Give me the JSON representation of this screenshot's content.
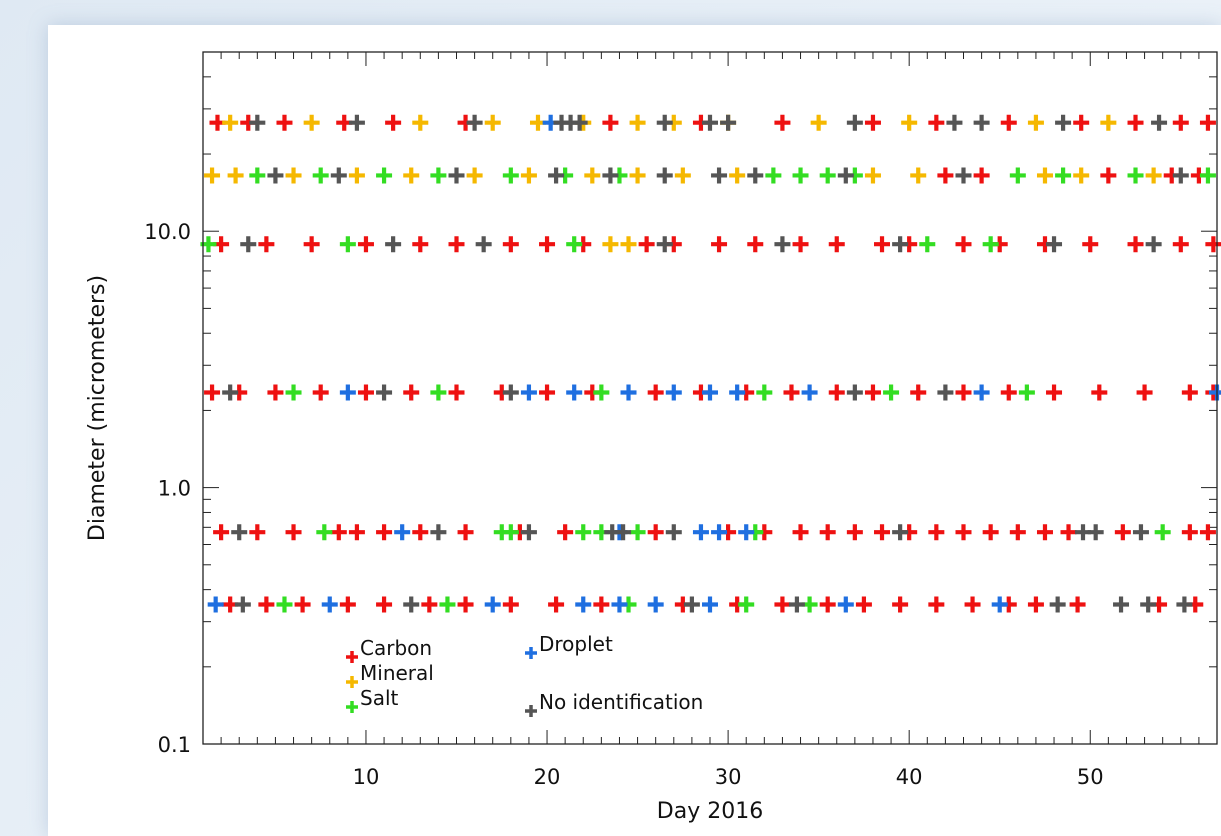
{
  "chart_data": {
    "type": "scatter",
    "title": "",
    "xlabel": "Day 2016",
    "ylabel": "Diameter (micrometers)",
    "xlim": [
      1,
      57
    ],
    "ylim": [
      0.1,
      50
    ],
    "y_scale": "log",
    "x_ticks": [
      10,
      20,
      30,
      40,
      50
    ],
    "x_tick_labels": [
      "10",
      "20",
      "30",
      "40",
      "50"
    ],
    "y_ticks": [
      0.1,
      1.0,
      10.0
    ],
    "y_tick_labels": [
      "0.1",
      "1.0",
      "10.0"
    ],
    "marker": "plus",
    "grid": false,
    "size_bins": [
      0.35,
      0.67,
      2.35,
      8.9,
      16.5,
      26.5
    ],
    "series": [
      {
        "name": "Carbon",
        "color": "#ee1111",
        "points": [
          [
            1.8,
            26.5
          ],
          [
            3.5,
            26.5
          ],
          [
            5.5,
            26.5
          ],
          [
            8.8,
            26.5
          ],
          [
            11.5,
            26.5
          ],
          [
            15.5,
            26.5
          ],
          [
            23.5,
            26.5
          ],
          [
            28.5,
            26.5
          ],
          [
            33.0,
            26.5
          ],
          [
            38.0,
            26.5
          ],
          [
            41.5,
            26.5
          ],
          [
            45.5,
            26.5
          ],
          [
            49.5,
            26.5
          ],
          [
            52.5,
            26.5
          ],
          [
            55.0,
            26.5
          ],
          [
            56.5,
            26.5
          ],
          [
            42.0,
            16.5
          ],
          [
            44.0,
            16.5
          ],
          [
            51.0,
            16.5
          ],
          [
            54.5,
            16.5
          ],
          [
            56.0,
            16.5
          ],
          [
            2.0,
            8.9
          ],
          [
            4.5,
            8.9
          ],
          [
            7.0,
            8.9
          ],
          [
            10.0,
            8.9
          ],
          [
            13.0,
            8.9
          ],
          [
            15.0,
            8.9
          ],
          [
            18.0,
            8.9
          ],
          [
            20.0,
            8.9
          ],
          [
            22.0,
            8.9
          ],
          [
            25.5,
            8.9
          ],
          [
            27.0,
            8.9
          ],
          [
            29.5,
            8.9
          ],
          [
            31.5,
            8.9
          ],
          [
            34.0,
            8.9
          ],
          [
            36.0,
            8.9
          ],
          [
            38.5,
            8.9
          ],
          [
            40.0,
            8.9
          ],
          [
            43.0,
            8.9
          ],
          [
            45.0,
            8.9
          ],
          [
            47.5,
            8.9
          ],
          [
            50.0,
            8.9
          ],
          [
            52.5,
            8.9
          ],
          [
            55.0,
            8.9
          ],
          [
            56.8,
            8.9
          ],
          [
            1.5,
            2.35
          ],
          [
            3.0,
            2.35
          ],
          [
            5.0,
            2.35
          ],
          [
            7.5,
            2.35
          ],
          [
            10.0,
            2.35
          ],
          [
            12.5,
            2.35
          ],
          [
            15.0,
            2.35
          ],
          [
            17.5,
            2.35
          ],
          [
            20.0,
            2.35
          ],
          [
            22.5,
            2.35
          ],
          [
            26.0,
            2.35
          ],
          [
            28.5,
            2.35
          ],
          [
            31.0,
            2.35
          ],
          [
            33.5,
            2.35
          ],
          [
            36.0,
            2.35
          ],
          [
            38.0,
            2.35
          ],
          [
            40.5,
            2.35
          ],
          [
            43.0,
            2.35
          ],
          [
            45.5,
            2.35
          ],
          [
            48.0,
            2.35
          ],
          [
            50.5,
            2.35
          ],
          [
            53.0,
            2.35
          ],
          [
            55.5,
            2.35
          ],
          [
            56.8,
            2.35
          ],
          [
            2.0,
            0.67
          ],
          [
            4.0,
            0.67
          ],
          [
            6.0,
            0.67
          ],
          [
            8.5,
            0.67
          ],
          [
            9.5,
            0.67
          ],
          [
            11.0,
            0.67
          ],
          [
            13.0,
            0.67
          ],
          [
            15.5,
            0.67
          ],
          [
            18.5,
            0.67
          ],
          [
            21.0,
            0.67
          ],
          [
            26.0,
            0.67
          ],
          [
            30.0,
            0.67
          ],
          [
            32.0,
            0.67
          ],
          [
            34.0,
            0.67
          ],
          [
            35.5,
            0.67
          ],
          [
            37.0,
            0.67
          ],
          [
            38.5,
            0.67
          ],
          [
            40.0,
            0.67
          ],
          [
            41.5,
            0.67
          ],
          [
            43.0,
            0.67
          ],
          [
            44.5,
            0.67
          ],
          [
            46.0,
            0.67
          ],
          [
            47.5,
            0.67
          ],
          [
            48.8,
            0.67
          ],
          [
            51.8,
            0.67
          ],
          [
            55.5,
            0.67
          ],
          [
            56.5,
            0.67
          ],
          [
            2.5,
            0.35
          ],
          [
            4.5,
            0.35
          ],
          [
            6.5,
            0.35
          ],
          [
            9.0,
            0.35
          ],
          [
            11.0,
            0.35
          ],
          [
            13.5,
            0.35
          ],
          [
            15.5,
            0.35
          ],
          [
            18.0,
            0.35
          ],
          [
            20.5,
            0.35
          ],
          [
            23.0,
            0.35
          ],
          [
            27.5,
            0.35
          ],
          [
            30.5,
            0.35
          ],
          [
            33.0,
            0.35
          ],
          [
            35.5,
            0.35
          ],
          [
            37.5,
            0.35
          ],
          [
            39.5,
            0.35
          ],
          [
            41.5,
            0.35
          ],
          [
            43.5,
            0.35
          ],
          [
            45.5,
            0.35
          ],
          [
            47.0,
            0.35
          ],
          [
            49.3,
            0.35
          ],
          [
            53.8,
            0.35
          ],
          [
            55.8,
            0.35
          ]
        ]
      },
      {
        "name": "Mineral",
        "color": "#f5b800",
        "points": [
          [
            2.5,
            26.5
          ],
          [
            7.0,
            26.5
          ],
          [
            13.0,
            26.5
          ],
          [
            17.0,
            26.5
          ],
          [
            19.5,
            26.5
          ],
          [
            22.0,
            26.5
          ],
          [
            25.0,
            26.5
          ],
          [
            27.0,
            26.5
          ],
          [
            30.0,
            26.5
          ],
          [
            35.0,
            26.5
          ],
          [
            40.0,
            26.5
          ],
          [
            47.0,
            26.5
          ],
          [
            51.0,
            26.5
          ],
          [
            1.5,
            16.5
          ],
          [
            2.8,
            16.5
          ],
          [
            6.0,
            16.5
          ],
          [
            9.5,
            16.5
          ],
          [
            12.5,
            16.5
          ],
          [
            16.0,
            16.5
          ],
          [
            19.0,
            16.5
          ],
          [
            22.5,
            16.5
          ],
          [
            25.0,
            16.5
          ],
          [
            27.5,
            16.5
          ],
          [
            30.5,
            16.5
          ],
          [
            38.0,
            16.5
          ],
          [
            40.5,
            16.5
          ],
          [
            47.5,
            16.5
          ],
          [
            49.5,
            16.5
          ],
          [
            53.5,
            16.5
          ],
          [
            23.5,
            8.9
          ],
          [
            24.5,
            8.9
          ]
        ]
      },
      {
        "name": "Salt",
        "color": "#33dd22",
        "points": [
          [
            4.0,
            16.5
          ],
          [
            7.5,
            16.5
          ],
          [
            11.0,
            16.5
          ],
          [
            14.0,
            16.5
          ],
          [
            18.0,
            16.5
          ],
          [
            21.0,
            16.5
          ],
          [
            24.0,
            16.5
          ],
          [
            32.5,
            16.5
          ],
          [
            34.0,
            16.5
          ],
          [
            35.5,
            16.5
          ],
          [
            37.0,
            16.5
          ],
          [
            46.0,
            16.5
          ],
          [
            48.5,
            16.5
          ],
          [
            52.5,
            16.5
          ],
          [
            56.5,
            16.5
          ],
          [
            1.3,
            8.9
          ],
          [
            9.0,
            8.9
          ],
          [
            21.5,
            8.9
          ],
          [
            41.0,
            8.9
          ],
          [
            44.5,
            8.9
          ],
          [
            6.0,
            2.35
          ],
          [
            14.0,
            2.35
          ],
          [
            23.0,
            2.35
          ],
          [
            32.0,
            2.35
          ],
          [
            39.0,
            2.35
          ],
          [
            46.5,
            2.35
          ],
          [
            7.7,
            0.67
          ],
          [
            17.5,
            0.67
          ],
          [
            18.0,
            0.67
          ],
          [
            22.0,
            0.67
          ],
          [
            23.0,
            0.67
          ],
          [
            25.0,
            0.67
          ],
          [
            31.5,
            0.67
          ],
          [
            54.0,
            0.67
          ],
          [
            5.5,
            0.35
          ],
          [
            14.5,
            0.35
          ],
          [
            24.5,
            0.35
          ],
          [
            31.0,
            0.35
          ],
          [
            34.5,
            0.35
          ]
        ]
      },
      {
        "name": "Droplet",
        "color": "#1f6fe0",
        "points": [
          [
            20.2,
            26.5
          ],
          [
            9.0,
            2.35
          ],
          [
            19.0,
            2.35
          ],
          [
            21.5,
            2.35
          ],
          [
            24.5,
            2.35
          ],
          [
            27.0,
            2.35
          ],
          [
            29.0,
            2.35
          ],
          [
            30.5,
            2.35
          ],
          [
            34.5,
            2.35
          ],
          [
            44.0,
            2.35
          ],
          [
            57.0,
            2.35
          ],
          [
            12.0,
            0.67
          ],
          [
            24.0,
            0.67
          ],
          [
            28.5,
            0.67
          ],
          [
            29.5,
            0.67
          ],
          [
            31.0,
            0.67
          ],
          [
            1.7,
            0.35
          ],
          [
            8.0,
            0.35
          ],
          [
            17.0,
            0.35
          ],
          [
            22.0,
            0.35
          ],
          [
            24.0,
            0.35
          ],
          [
            26.0,
            0.35
          ],
          [
            29.0,
            0.35
          ],
          [
            36.5,
            0.35
          ],
          [
            45.0,
            0.35
          ]
        ]
      },
      {
        "name": "No identification",
        "color": "#555555",
        "points": [
          [
            4.0,
            26.5
          ],
          [
            9.5,
            26.5
          ],
          [
            16.0,
            26.5
          ],
          [
            20.8,
            26.5
          ],
          [
            21.3,
            26.5
          ],
          [
            21.8,
            26.5
          ],
          [
            26.5,
            26.5
          ],
          [
            29.0,
            26.5
          ],
          [
            30.0,
            26.5
          ],
          [
            37.0,
            26.5
          ],
          [
            42.5,
            26.5
          ],
          [
            44.0,
            26.5
          ],
          [
            48.5,
            26.5
          ],
          [
            53.8,
            26.5
          ],
          [
            5.0,
            16.5
          ],
          [
            8.5,
            16.5
          ],
          [
            15.0,
            16.5
          ],
          [
            20.5,
            16.5
          ],
          [
            23.5,
            16.5
          ],
          [
            26.5,
            16.5
          ],
          [
            29.5,
            16.5
          ],
          [
            31.5,
            16.5
          ],
          [
            36.5,
            16.5
          ],
          [
            43.0,
            16.5
          ],
          [
            55.0,
            16.5
          ],
          [
            3.5,
            8.9
          ],
          [
            11.5,
            8.9
          ],
          [
            16.5,
            8.9
          ],
          [
            26.5,
            8.9
          ],
          [
            33.0,
            8.9
          ],
          [
            39.5,
            8.9
          ],
          [
            48.0,
            8.9
          ],
          [
            53.5,
            8.9
          ],
          [
            2.5,
            2.35
          ],
          [
            11.0,
            2.35
          ],
          [
            18.0,
            2.35
          ],
          [
            37.0,
            2.35
          ],
          [
            42.0,
            2.35
          ],
          [
            3.0,
            0.67
          ],
          [
            14.0,
            0.67
          ],
          [
            19.0,
            0.67
          ],
          [
            23.6,
            0.67
          ],
          [
            24.2,
            0.67
          ],
          [
            27.0,
            0.67
          ],
          [
            39.5,
            0.67
          ],
          [
            49.6,
            0.67
          ],
          [
            50.3,
            0.67
          ],
          [
            52.8,
            0.67
          ],
          [
            3.2,
            0.35
          ],
          [
            12.5,
            0.35
          ],
          [
            28.0,
            0.35
          ],
          [
            33.8,
            0.35
          ],
          [
            48.2,
            0.35
          ],
          [
            51.7,
            0.35
          ],
          [
            53.2,
            0.35
          ],
          [
            55.2,
            0.35
          ]
        ]
      }
    ],
    "legend": [
      {
        "label": "Carbon",
        "color": "#ee1111"
      },
      {
        "label": "Mineral",
        "color": "#f5b800"
      },
      {
        "label": "Salt",
        "color": "#33dd22"
      },
      {
        "label": "Droplet",
        "color": "#1f6fe0"
      },
      {
        "label": "No identification",
        "color": "#555555"
      }
    ],
    "legend_placement": "bottom-left inside"
  }
}
